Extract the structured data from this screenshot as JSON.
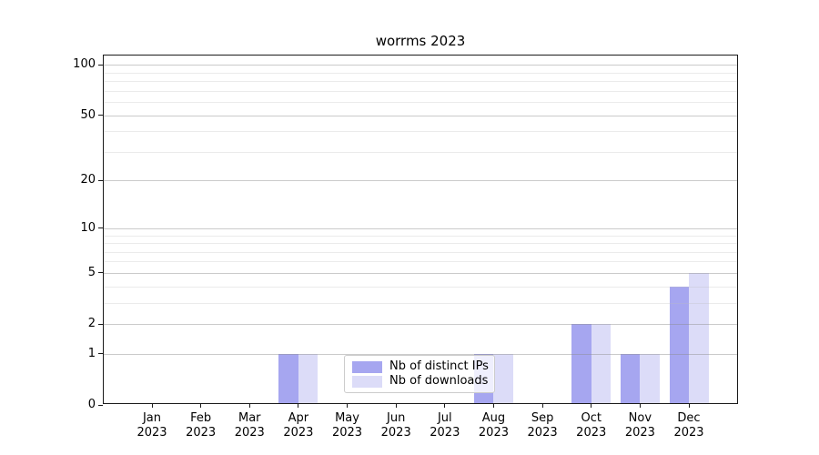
{
  "chart_data": {
    "type": "bar",
    "title": "worrms 2023",
    "x_tick_labels": [
      [
        "Jan",
        "2023"
      ],
      [
        "Feb",
        "2023"
      ],
      [
        "Mar",
        "2023"
      ],
      [
        "Apr",
        "2023"
      ],
      [
        "May",
        "2023"
      ],
      [
        "Jun",
        "2023"
      ],
      [
        "Jul",
        "2023"
      ],
      [
        "Aug",
        "2023"
      ],
      [
        "Sep",
        "2023"
      ],
      [
        "Oct",
        "2023"
      ],
      [
        "Nov",
        "2023"
      ],
      [
        "Dec",
        "2023"
      ]
    ],
    "series": [
      {
        "name": "Nb of distinct IPs",
        "color": "#a6a6f0",
        "values": [
          0,
          0,
          0,
          1,
          0,
          0,
          0,
          1,
          0,
          2,
          1,
          4
        ]
      },
      {
        "name": "Nb of downloads",
        "color": "#dcdcf8",
        "values": [
          0,
          0,
          0,
          1,
          0,
          0,
          0,
          1,
          0,
          2,
          1,
          5
        ]
      }
    ],
    "yscale": "log1p",
    "y_major_ticks": [
      0,
      1,
      2,
      5,
      10,
      20,
      50,
      100
    ],
    "y_minor_ticks": [
      3,
      4,
      6,
      7,
      8,
      9,
      30,
      40,
      60,
      70,
      80,
      90
    ],
    "ylim": [
      0,
      113
    ],
    "xlabel": "",
    "ylabel": "",
    "grid": true,
    "legend": {
      "position": "lower-center-inside",
      "items": [
        "Nb of distinct IPs",
        "Nb of downloads"
      ]
    }
  }
}
